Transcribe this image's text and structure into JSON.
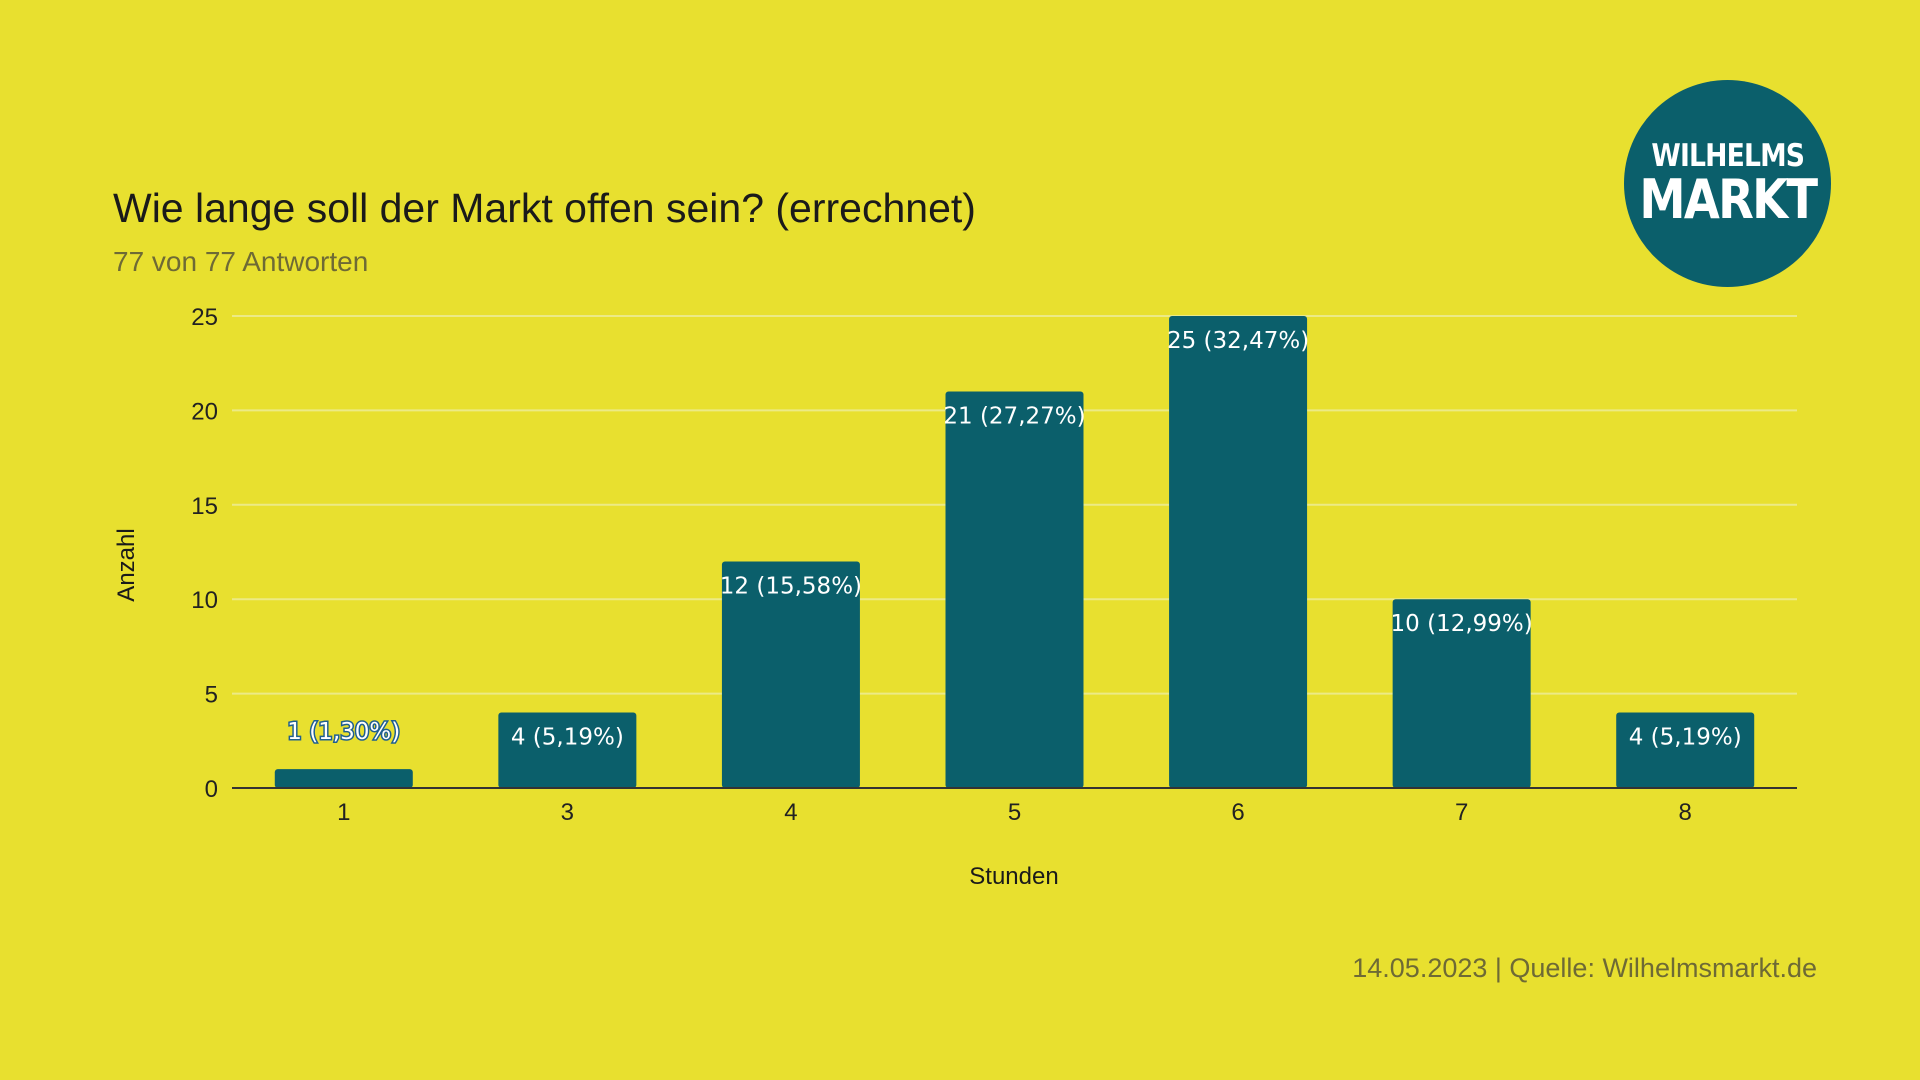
{
  "header": {
    "title": "Wie lange soll der Markt offen sein? (errechnet)",
    "subtitle": "77 von 77 Antworten"
  },
  "logo": {
    "line1": "WILHELMS",
    "line2": "MARKT"
  },
  "footer": {
    "text": "14.05.2023 | Quelle: Wilhelmsmarkt.de"
  },
  "colors": {
    "background": "#e8e02f",
    "bar": "#0b5f6b",
    "grid": "#ecea86",
    "axis": "#333333",
    "logo": "#0b5f6b"
  },
  "chart_data": {
    "type": "bar",
    "categories": [
      "1",
      "3",
      "4",
      "5",
      "6",
      "7",
      "8"
    ],
    "values": [
      1,
      4,
      12,
      21,
      25,
      10,
      4
    ],
    "data_labels": [
      "1 (1,30%)",
      "4 (5,19%)",
      "12 (15,58%)",
      "21 (27,27%)",
      "25 (32,47%)",
      "10 (12,99%)",
      "4 (5,19%)"
    ],
    "xlabel": "Stunden",
    "ylabel": "Anzahl",
    "ylim": [
      0,
      25
    ],
    "yticks": [
      0,
      5,
      10,
      15,
      20,
      25
    ],
    "grid": true,
    "legend": "none"
  }
}
